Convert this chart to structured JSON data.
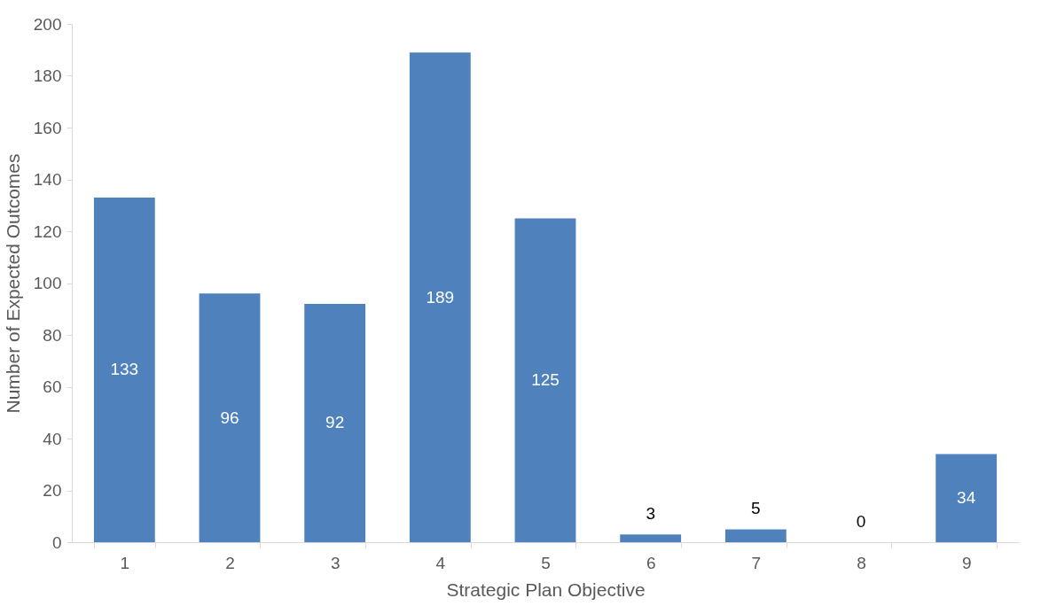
{
  "chart_data": {
    "type": "bar",
    "xlabel": "Strategic Plan Objective",
    "ylabel": "Number of Expected Outcomes",
    "categories": [
      "1",
      "2",
      "3",
      "4",
      "5",
      "6",
      "7",
      "8",
      "9"
    ],
    "values": [
      133,
      96,
      92,
      189,
      125,
      3,
      5,
      0,
      34
    ],
    "color": "#4f81bd",
    "ylim": [
      0,
      200
    ],
    "yticks": [
      0,
      20,
      40,
      60,
      80,
      100,
      120,
      140,
      160,
      180,
      200
    ],
    "grid": false,
    "data_labels": true
  }
}
